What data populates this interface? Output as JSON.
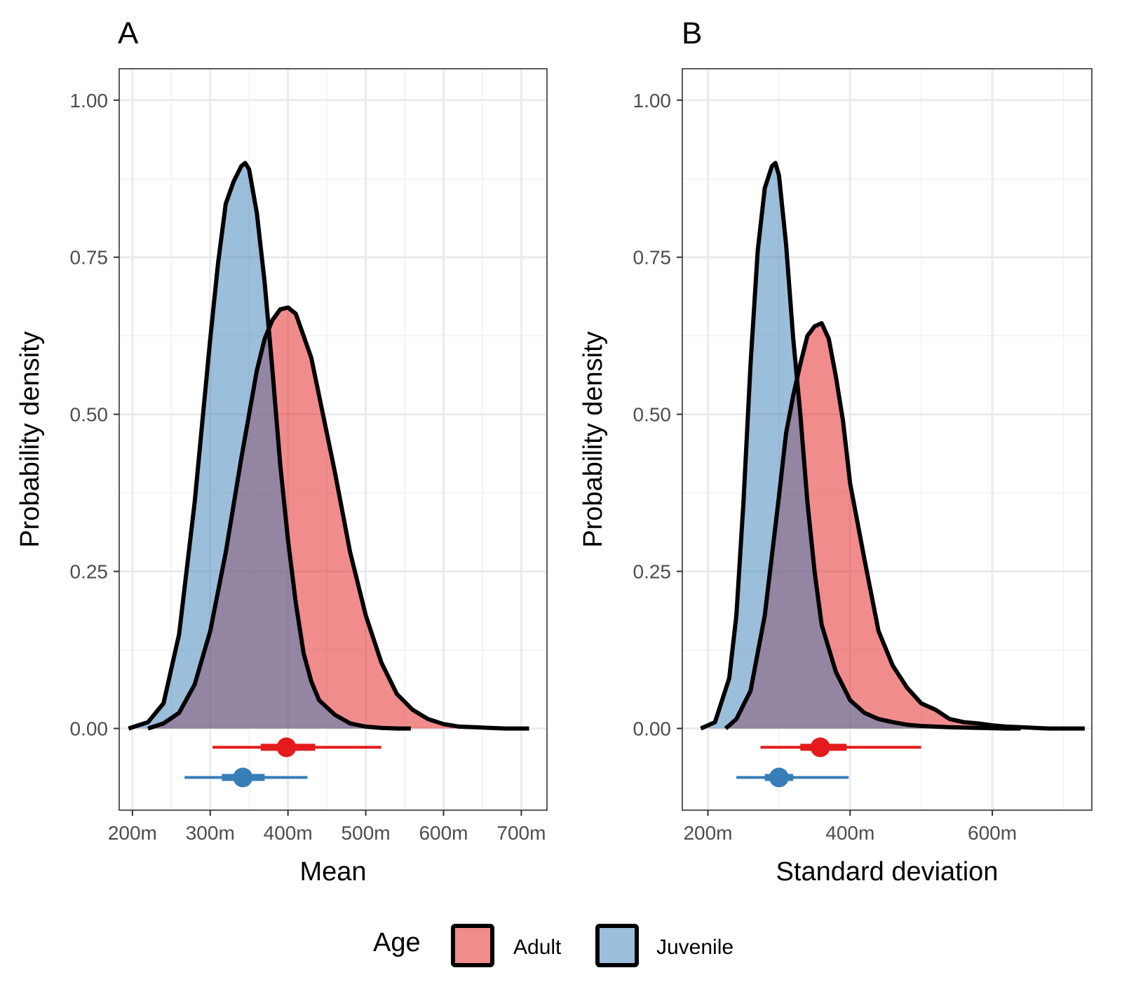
{
  "chart_data": [
    {
      "type": "area",
      "panel_tag": "A",
      "xlabel": "Mean",
      "ylabel": "Probability density",
      "xlim": [
        0.183,
        0.733
      ],
      "ylim": [
        -0.13,
        1.05
      ],
      "x_ticks": [
        0.2,
        0.3,
        0.4,
        0.5,
        0.6,
        0.7
      ],
      "x_tick_labels": [
        "200m",
        "300m",
        "400m",
        "500m",
        "600m",
        "700m"
      ],
      "y_ticks": [
        0,
        0.25,
        0.5,
        0.75,
        1
      ],
      "y_tick_labels": [
        "0.00",
        "0.25",
        "0.50",
        "0.75",
        "1.00"
      ],
      "grid": true,
      "series": [
        {
          "name": "Adult",
          "color": "#E41A1C",
          "x": [
            0.22,
            0.24,
            0.26,
            0.28,
            0.3,
            0.32,
            0.34,
            0.36,
            0.37,
            0.38,
            0.39,
            0.4,
            0.41,
            0.42,
            0.43,
            0.44,
            0.46,
            0.48,
            0.5,
            0.52,
            0.54,
            0.56,
            0.58,
            0.6,
            0.62,
            0.64,
            0.66,
            0.68,
            0.7,
            0.71
          ],
          "y": [
            0.0,
            0.008,
            0.025,
            0.07,
            0.155,
            0.28,
            0.43,
            0.57,
            0.62,
            0.65,
            0.667,
            0.67,
            0.66,
            0.625,
            0.59,
            0.53,
            0.41,
            0.28,
            0.18,
            0.105,
            0.055,
            0.03,
            0.015,
            0.007,
            0.003,
            0.002,
            0.001,
            0.0,
            0.0,
            0.0
          ],
          "interval": {
            "point": 0.398,
            "inner": [
              0.365,
              0.435
            ],
            "outer": [
              0.303,
              0.52
            ]
          }
        },
        {
          "name": "Juvenile",
          "color": "#377EB8",
          "x": [
            0.195,
            0.22,
            0.24,
            0.26,
            0.28,
            0.3,
            0.31,
            0.32,
            0.33,
            0.34,
            0.345,
            0.35,
            0.36,
            0.37,
            0.38,
            0.39,
            0.4,
            0.41,
            0.42,
            0.43,
            0.44,
            0.46,
            0.48,
            0.5,
            0.52,
            0.54,
            0.558
          ],
          "y": [
            0.0,
            0.01,
            0.04,
            0.15,
            0.36,
            0.62,
            0.74,
            0.835,
            0.87,
            0.895,
            0.9,
            0.89,
            0.82,
            0.71,
            0.57,
            0.42,
            0.3,
            0.2,
            0.12,
            0.075,
            0.045,
            0.022,
            0.008,
            0.003,
            0.001,
            0.0,
            0.0
          ],
          "interval": {
            "point": 0.342,
            "inner": [
              0.315,
              0.37
            ],
            "outer": [
              0.267,
              0.425
            ]
          }
        }
      ]
    },
    {
      "type": "area",
      "panel_tag": "B",
      "xlabel": "Standard deviation",
      "ylabel": "Probability density",
      "xlim": [
        0.164,
        0.74
      ],
      "ylim": [
        -0.13,
        1.05
      ],
      "x_ticks": [
        0.2,
        0.4,
        0.6
      ],
      "x_tick_labels": [
        "200m",
        "400m",
        "600m"
      ],
      "y_ticks": [
        0,
        0.25,
        0.5,
        0.75,
        1
      ],
      "y_tick_labels": [
        "0.00",
        "0.25",
        "0.50",
        "0.75",
        "1.00"
      ],
      "grid": true,
      "series": [
        {
          "name": "Adult",
          "color": "#E41A1C",
          "x": [
            0.225,
            0.24,
            0.26,
            0.28,
            0.3,
            0.31,
            0.32,
            0.33,
            0.34,
            0.35,
            0.36,
            0.37,
            0.38,
            0.39,
            0.4,
            0.42,
            0.44,
            0.46,
            0.48,
            0.5,
            0.52,
            0.54,
            0.56,
            0.58,
            0.6,
            0.62,
            0.64,
            0.66,
            0.68,
            0.7,
            0.73
          ],
          "y": [
            0.0,
            0.015,
            0.06,
            0.18,
            0.37,
            0.47,
            0.53,
            0.58,
            0.625,
            0.64,
            0.645,
            0.62,
            0.56,
            0.49,
            0.39,
            0.27,
            0.155,
            0.1,
            0.065,
            0.04,
            0.03,
            0.015,
            0.01,
            0.008,
            0.005,
            0.003,
            0.002,
            0.001,
            0.0,
            0.0,
            0.0
          ],
          "interval": {
            "point": 0.358,
            "inner": [
              0.33,
              0.395
            ],
            "outer": [
              0.274,
              0.5
            ]
          }
        },
        {
          "name": "Juvenile",
          "color": "#377EB8",
          "x": [
            0.19,
            0.21,
            0.23,
            0.24,
            0.25,
            0.26,
            0.27,
            0.28,
            0.29,
            0.295,
            0.3,
            0.31,
            0.32,
            0.33,
            0.34,
            0.35,
            0.36,
            0.38,
            0.4,
            0.42,
            0.44,
            0.46,
            0.48,
            0.5,
            0.54,
            0.58,
            0.62,
            0.64
          ],
          "y": [
            0.0,
            0.01,
            0.08,
            0.18,
            0.36,
            0.58,
            0.76,
            0.86,
            0.895,
            0.9,
            0.88,
            0.77,
            0.62,
            0.5,
            0.36,
            0.25,
            0.165,
            0.09,
            0.045,
            0.025,
            0.015,
            0.01,
            0.006,
            0.004,
            0.002,
            0.001,
            0.0,
            0.0
          ],
          "interval": {
            "point": 0.3,
            "inner": [
              0.28,
              0.32
            ],
            "outer": [
              0.24,
              0.398
            ]
          }
        }
      ]
    }
  ],
  "legend": {
    "title": "Age",
    "placement": "bottom",
    "items": [
      {
        "label": "Adult",
        "fill": "#E41A1C"
      },
      {
        "label": "Juvenile",
        "fill": "#377EB8"
      }
    ]
  }
}
